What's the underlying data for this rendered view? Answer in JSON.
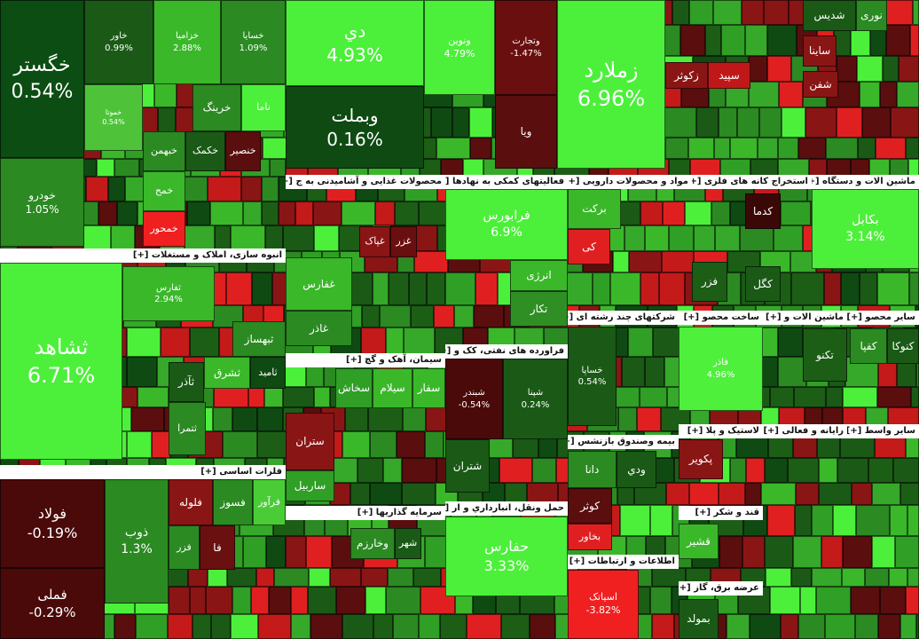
{
  "sectors": [
    {
      "tiles": [
        {
          "name": "خگستر",
          "change": "0.54%"
        },
        {
          "name": "خودرو",
          "change": "1.05%"
        },
        {
          "name": "خاور",
          "change": "0.99%"
        },
        {
          "name": "خزامیا",
          "change": "2.88%"
        },
        {
          "name": "خسایا",
          "change": "1.09%"
        },
        {
          "name": "خموتا",
          "change": "0.54%"
        },
        {
          "name": "خرینگ"
        },
        {
          "name": "ناما"
        },
        {
          "name": "خبهمن"
        },
        {
          "name": "خکمک"
        },
        {
          "name": "خنصیر"
        },
        {
          "name": "خمح"
        },
        {
          "name": "خمحور"
        }
      ]
    },
    {
      "title": "انبوه سازی، املاک و مستغلات [+]",
      "tiles": [
        {
          "name": "ثشاهد",
          "change": "6.71%"
        },
        {
          "name": "ثفارس",
          "change": "2.94%"
        },
        {
          "name": "ثبهساز"
        },
        {
          "name": "ثامید"
        },
        {
          "name": "ثشرق"
        },
        {
          "name": "ثآذر"
        },
        {
          "name": "ثتمرا"
        }
      ]
    },
    {
      "title": "فلزات اساسی [+]",
      "tiles": [
        {
          "name": "فولاد",
          "change": "-0.19%"
        },
        {
          "name": "فملی",
          "change": "-0.29%"
        },
        {
          "name": "ذوب",
          "change": "1.3%"
        },
        {
          "name": "فلوله"
        },
        {
          "name": "فسوز"
        },
        {
          "name": "فرآور"
        },
        {
          "name": "فزر"
        },
        {
          "name": "فا"
        }
      ]
    },
    {
      "tiles": [
        {
          "name": "دي",
          "change": "4.93%"
        },
        {
          "name": "وبملت",
          "change": "0.16%"
        },
        {
          "name": "ونوین",
          "change": "4.79%"
        },
        {
          "name": "وتجارت",
          "change": "-1.47%"
        },
        {
          "name": "ویا"
        }
      ]
    },
    {
      "tiles": [
        {
          "name": "زملارد",
          "change": "6.96%"
        },
        {
          "name": "زکوثر"
        },
        {
          "name": "سپید"
        },
        {
          "name": "شدیس"
        },
        {
          "name": "نوری"
        },
        {
          "name": "ساینا"
        },
        {
          "name": "شفن"
        }
      ]
    },
    {
      "title": "محصولات غذایی و آشامیدنی به ج [+]",
      "tiles": [
        {
          "name": "غفارس"
        },
        {
          "name": "غاذر"
        },
        {
          "name": "غپاک"
        },
        {
          "name": "غزر"
        }
      ]
    },
    {
      "title": "فعالیتهای کمکی به نهادها [+]",
      "tiles": [
        {
          "name": "فرابورس",
          "change": "6.9%"
        },
        {
          "name": "انرژی"
        },
        {
          "name": "تکار"
        }
      ]
    },
    {
      "title": "مواد و محصولات دارویی [+]",
      "tiles": [
        {
          "name": "برکت"
        },
        {
          "name": "کی"
        }
      ]
    },
    {
      "title": "استخراج کانه های فلزی [+]",
      "tiles": [
        {
          "name": "کدما"
        },
        {
          "name": "کگل"
        },
        {
          "name": "فزر"
        }
      ]
    },
    {
      "title": "ماشین الات و دستگاه [+]",
      "tiles": [
        {
          "name": "بکابل",
          "change": "3.14%"
        }
      ]
    },
    {
      "title": "سیمان، آهک و گچ [+]",
      "tiles": [
        {
          "name": "سفار"
        },
        {
          "name": "سیلام"
        },
        {
          "name": "سخاش"
        },
        {
          "name": "ستران"
        },
        {
          "name": "ساربیل"
        }
      ]
    },
    {
      "title": "فراورده های نفتی، کک و [+]",
      "tiles": [
        {
          "name": "شبندر",
          "change": "-0.54%"
        },
        {
          "name": "شپنا",
          "change": "0.24%"
        },
        {
          "name": "شتران"
        }
      ]
    },
    {
      "title": "شرکتهای چند رشته ای [+]",
      "tiles": [
        {
          "name": "خساپا",
          "change": "0.54%"
        }
      ]
    },
    {
      "title": "ساخت محصو [+]",
      "tiles": [
        {
          "name": "فاذر",
          "change": "4.96%"
        }
      ]
    },
    {
      "title": "ماشین الات و [+]",
      "tiles": [
        {
          "name": "تکنو"
        }
      ]
    },
    {
      "title": "سایر محصو [+]",
      "tiles": [
        {
          "name": "کنوکا"
        },
        {
          "name": "کفپا"
        }
      ]
    },
    {
      "title": "بیمه وصندوق بازنشس [+]",
      "tiles": [
        {
          "name": "دانا"
        },
        {
          "name": "ودي"
        },
        {
          "name": "کوثر"
        },
        {
          "name": "بخاور"
        }
      ]
    },
    {
      "title": "لاستیک و پلا [+]",
      "tiles": [
        {
          "name": "پکویر"
        }
      ]
    },
    {
      "title": "رایانه و فعالی [+]"
    },
    {
      "title": "سایر واسط [+]"
    },
    {
      "title": "سرمایه گذاریها [+]",
      "tiles": [
        {
          "name": "وخارزم"
        },
        {
          "name": "شهر"
        }
      ]
    },
    {
      "title": "حمل ونقل، انبارداري و ار [+]",
      "tiles": [
        {
          "name": "حفارس",
          "change": "3.33%"
        }
      ]
    },
    {
      "title": "اطلاعات و ارتباطات [+]",
      "tiles": [
        {
          "name": "اسیاتک",
          "change": "-3.82%"
        }
      ]
    },
    {
      "title": "قند و شکر [+]",
      "tiles": [
        {
          "name": "قشیر"
        }
      ]
    },
    {
      "title": "عرضه برق، گاز [+]",
      "tiles": [
        {
          "name": "بمولد"
        }
      ]
    }
  ]
}
